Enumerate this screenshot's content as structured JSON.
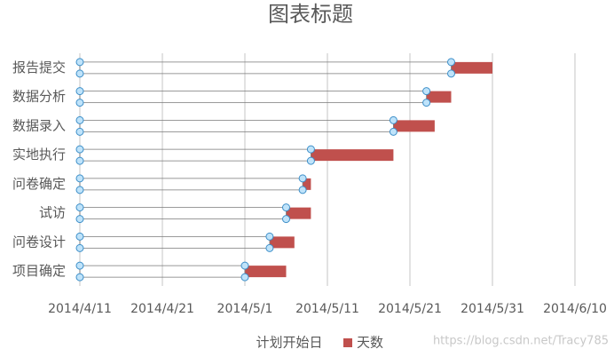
{
  "chart_data": {
    "type": "gantt",
    "title": "图表标题",
    "categories": [
      "报告提交",
      "数据分析",
      "数据录入",
      "实地执行",
      "问卷确定",
      "试访",
      "问卷设计",
      "项目确定"
    ],
    "series": [
      {
        "name": "计划开始日",
        "color": "none",
        "values": [
          "2014/5/26",
          "2014/5/23",
          "2014/5/19",
          "2014/5/9",
          "2014/5/8",
          "2014/5/6",
          "2014/5/4",
          "2014/5/1"
        ]
      },
      {
        "name": "天数",
        "color": "#c0504d",
        "values": [
          5,
          3,
          5,
          10,
          1,
          3,
          3,
          5
        ]
      }
    ],
    "xlim": [
      "2014/4/11",
      "2014/6/10"
    ],
    "xticks": [
      "2014/4/11",
      "2014/4/21",
      "2014/5/1",
      "2014/5/11",
      "2014/5/21",
      "2014/5/31",
      "2014/6/10"
    ],
    "grid": true,
    "legend": "bottom",
    "watermark": "https://blog.csdn.net/Tracy785"
  }
}
